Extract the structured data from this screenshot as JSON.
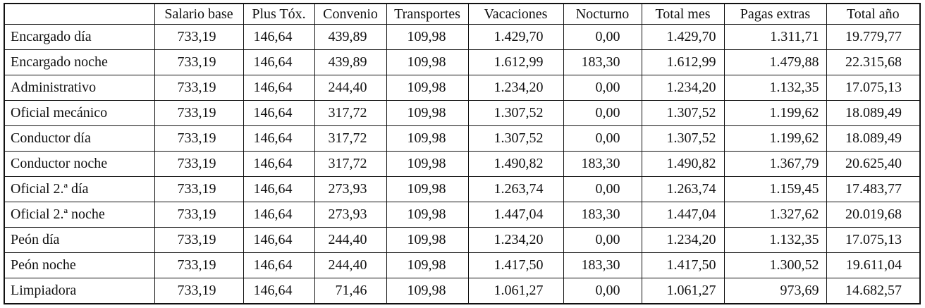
{
  "table": {
    "header": [
      "Salario base",
      "Plus Tóx.",
      "Convenio",
      "Transportes",
      "Vacaciones",
      "Nocturno",
      "Total mes",
      "Pagas extras",
      "Total año"
    ],
    "rows": [
      [
        "Encargado día",
        "733,19",
        "146,64",
        "439,89",
        "109,98",
        "1.429,70",
        "0,00",
        "1.429,70",
        "1.311,71",
        "19.779,77"
      ],
      [
        "Encargado noche",
        "733,19",
        "146,64",
        "439,89",
        "109,98",
        "1.612,99",
        "183,30",
        "1.612,99",
        "1.479,88",
        "22.315,68"
      ],
      [
        "Administrativo",
        "733,19",
        "146,64",
        "244,40",
        "109,98",
        "1.234,20",
        "0,00",
        "1.234,20",
        "1.132,35",
        "17.075,13"
      ],
      [
        "Oficial mecánico",
        "733,19",
        "146,64",
        "317,72",
        "109,98",
        "1.307,52",
        "0,00",
        "1.307,52",
        "1.199,62",
        "18.089,49"
      ],
      [
        "Conductor día",
        "733,19",
        "146,64",
        "317,72",
        "109,98",
        "1.307,52",
        "0,00",
        "1.307,52",
        "1.199,62",
        "18.089,49"
      ],
      [
        "Conductor noche",
        "733,19",
        "146,64",
        "317,72",
        "109,98",
        "1.490,82",
        "183,30",
        "1.490,82",
        "1.367,79",
        "20.625,40"
      ],
      [
        "Oficial 2.ª día",
        "733,19",
        "146,64",
        "273,93",
        "109,98",
        "1.263,74",
        "0,00",
        "1.263,74",
        "1.159,45",
        "17.483,77"
      ],
      [
        "Oficial 2.ª noche",
        "733,19",
        "146,64",
        "273,93",
        "109,98",
        "1.447,04",
        "183,30",
        "1.447,04",
        "1.327,62",
        "20.019,68"
      ],
      [
        "Peón día",
        "733,19",
        "146,64",
        "244,40",
        "109,98",
        "1.234,20",
        "0,00",
        "1.234,20",
        "1.132,35",
        "17.075,13"
      ],
      [
        "Peón noche",
        "733,19",
        "146,64",
        "244,40",
        "109,98",
        "1.417,50",
        "183,30",
        "1.417,50",
        "1.300,52",
        "19.611,04"
      ],
      [
        "Limpiadora",
        "733,19",
        "146,64",
        "71,46",
        "109,98",
        "1.061,27",
        "0,00",
        "1.061,27",
        "973,69",
        "14.682,57"
      ]
    ]
  }
}
